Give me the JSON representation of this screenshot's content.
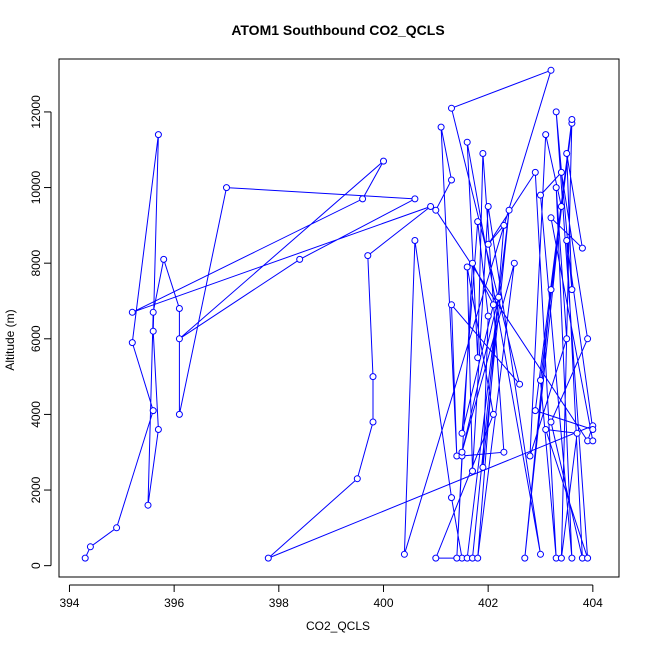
{
  "chart_data": {
    "type": "scatter",
    "title": "ATOM1 Southbound CO2_QCLS",
    "xlabel": "CO2_QCLS",
    "ylabel": "Altitude (m)",
    "xlim": [
      393.8,
      404.5
    ],
    "ylim": [
      -300,
      13400
    ],
    "xticks": [
      394,
      396,
      398,
      400,
      402,
      404
    ],
    "yticks": [
      0,
      2000,
      4000,
      6000,
      8000,
      10000,
      12000
    ],
    "grid": false,
    "color": "#0000ff",
    "series": [
      {
        "style": "line-with-open-circles",
        "x": [
          394.3,
          394.4,
          394.9,
          395.6,
          395.2,
          395.7,
          395.6,
          395.7,
          395.5,
          395.6,
          395.8,
          396.1,
          396.1,
          397.0,
          400.6,
          398.4,
          396.1,
          400.0,
          399.6,
          395.2,
          400.9,
          399.7,
          399.8,
          399.8,
          399.5,
          397.8,
          404.0,
          403.9,
          401.0,
          401.3,
          401.1,
          401.4,
          401.3,
          402.6,
          401.3,
          403.2,
          400.4,
          400.6,
          401.3,
          401.5,
          401.0,
          402.1,
          401.6,
          401.7,
          402.0,
          403.0,
          401.6,
          401.8,
          401.9,
          402.3,
          401.5,
          401.4,
          401.7,
          402.1,
          401.5,
          401.8,
          402.0,
          401.9,
          402.4,
          401.6,
          401.7,
          402.2,
          401.5,
          402.5,
          401.8,
          402.3,
          402.0,
          402.9,
          403.3,
          403.0,
          403.6,
          403.2,
          402.7,
          403.4,
          403.1,
          402.8,
          403.5,
          403.3,
          403.6,
          403.0,
          403.4,
          403.9,
          403.2,
          403.8,
          403.5,
          404.0,
          402.9,
          403.6,
          403.4,
          403.7,
          403.1,
          403.9,
          403.3,
          403.6,
          403.5,
          403.8,
          403.2,
          404.0
        ],
        "y": [
          200,
          500,
          1000,
          4100,
          5900,
          11400,
          6200,
          3600,
          1600,
          6700,
          8100,
          6800,
          4000,
          10000,
          9700,
          8100,
          6000,
          10700,
          9700,
          6700,
          9500,
          8200,
          5000,
          3800,
          2300,
          200,
          3700,
          3300,
          9400,
          10200,
          11600,
          2900,
          6900,
          4800,
          12100,
          13100,
          300,
          8600,
          1800,
          200,
          200,
          4000,
          7900,
          2500,
          9500,
          300,
          11200,
          5500,
          10900,
          3000,
          2900,
          200,
          8000,
          6900,
          3500,
          9100,
          6600,
          2600,
          9400,
          200,
          200,
          7100,
          3000,
          8000,
          200,
          9000,
          8500,
          10400,
          200,
          4900,
          11700,
          7300,
          200,
          9500,
          11400,
          2900,
          6000,
          10000,
          200,
          9800,
          10400,
          6000,
          3800,
          200,
          8600,
          3600,
          4100,
          11800,
          200,
          3500,
          3600,
          200,
          12000,
          7300,
          10900,
          8400,
          9200,
          3300
        ]
      }
    ]
  }
}
